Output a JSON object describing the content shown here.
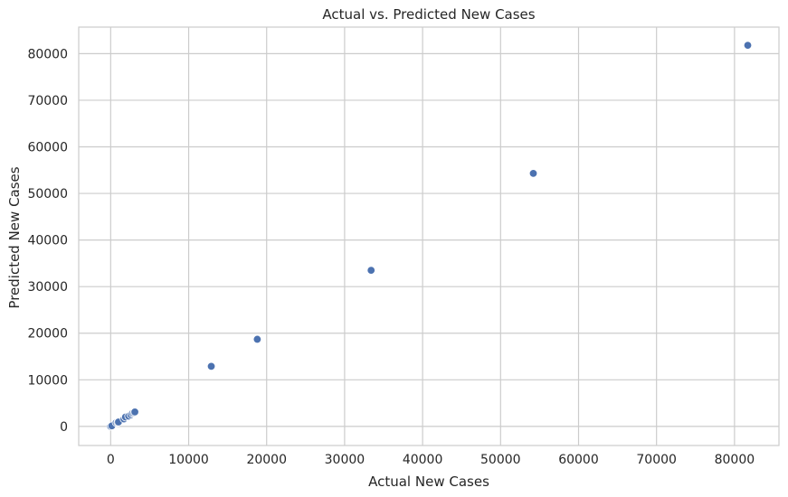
{
  "chart_data": {
    "type": "scatter",
    "title": "Actual vs. Predicted New Cases",
    "xlabel": "Actual New Cases",
    "ylabel": "Predicted New Cases",
    "xlim": [
      -4100,
      85700
    ],
    "ylim": [
      -4100,
      85700
    ],
    "xticks": [
      0,
      10000,
      20000,
      30000,
      40000,
      50000,
      60000,
      70000,
      80000
    ],
    "yticks": [
      0,
      10000,
      20000,
      30000,
      40000,
      50000,
      60000,
      70000,
      80000
    ],
    "grid": true,
    "marker_color": "#4c72b0",
    "points": [
      {
        "x": 0,
        "y": 0
      },
      {
        "x": 150,
        "y": 120
      },
      {
        "x": 700,
        "y": 800
      },
      {
        "x": 900,
        "y": 850
      },
      {
        "x": 1000,
        "y": 950
      },
      {
        "x": 1700,
        "y": 1600
      },
      {
        "x": 1900,
        "y": 2000
      },
      {
        "x": 2300,
        "y": 2200
      },
      {
        "x": 2600,
        "y": 2500
      },
      {
        "x": 2800,
        "y": 2800
      },
      {
        "x": 3000,
        "y": 2900
      },
      {
        "x": 3100,
        "y": 3100
      },
      {
        "x": 12900,
        "y": 12900
      },
      {
        "x": 18800,
        "y": 18700
      },
      {
        "x": 33400,
        "y": 33500
      },
      {
        "x": 54200,
        "y": 54300
      },
      {
        "x": 81700,
        "y": 81800
      }
    ]
  }
}
